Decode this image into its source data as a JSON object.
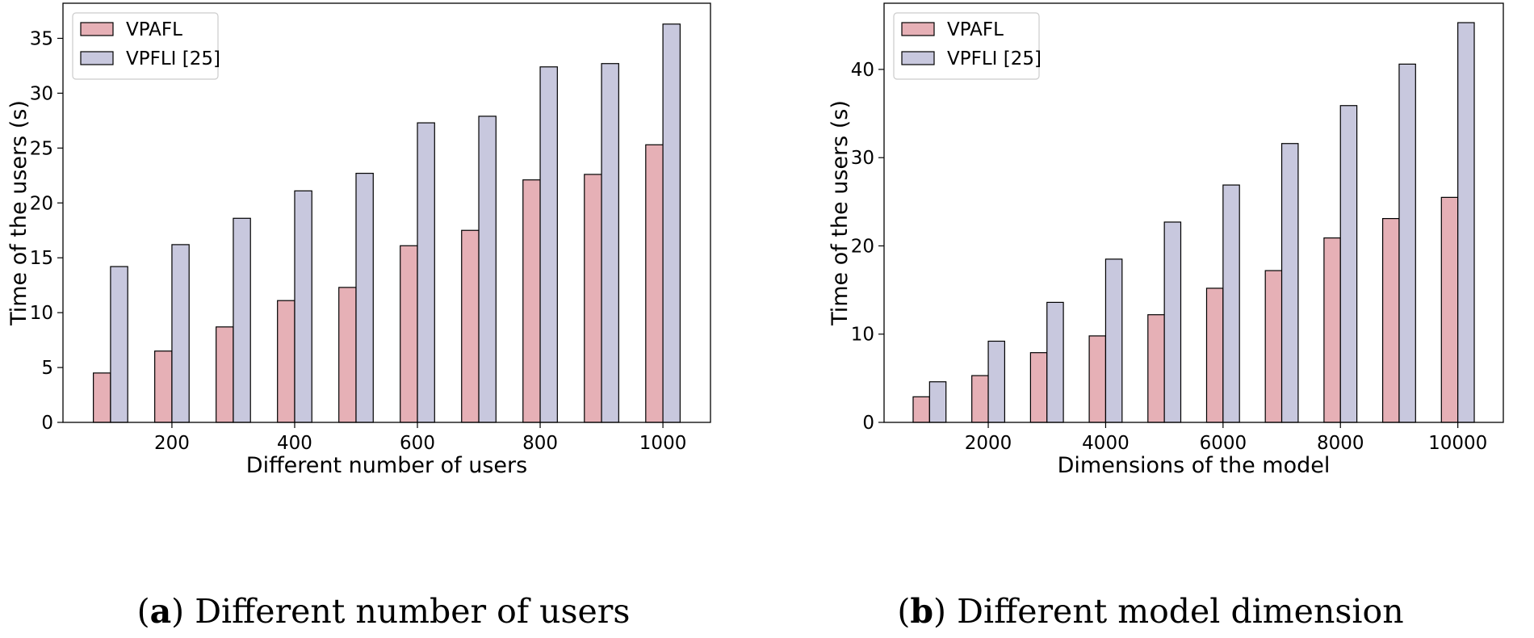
{
  "chart_data": [
    {
      "type": "bar",
      "x": [
        100,
        200,
        300,
        400,
        500,
        600,
        700,
        800,
        900,
        1000
      ],
      "xticks": [
        "200",
        "400",
        "600",
        "800",
        "1000"
      ],
      "yticks": [
        "0",
        "5",
        "10",
        "15",
        "20",
        "25",
        "30",
        "35"
      ],
      "xlabel": "Different number of users",
      "ylabel": "Time of the users (s)",
      "ylim": [
        0,
        38.2
      ],
      "grid": false,
      "legend_position": "top-left",
      "series": [
        {
          "name": "VPAFL",
          "color": "#e6b0b6",
          "values": [
            4.5,
            6.5,
            8.7,
            11.1,
            12.3,
            16.1,
            17.5,
            22.1,
            22.6,
            25.3
          ]
        },
        {
          "name": "VPFLI [25]",
          "color": "#c8c8de",
          "values": [
            14.2,
            16.2,
            18.6,
            21.1,
            22.7,
            27.3,
            27.9,
            32.4,
            32.7,
            36.3
          ]
        }
      ],
      "caption_letter": "a",
      "caption_text": "Different number of users"
    },
    {
      "type": "bar",
      "x": [
        1000,
        2000,
        3000,
        4000,
        5000,
        6000,
        7000,
        8000,
        9000,
        10000
      ],
      "xticks": [
        "2000",
        "4000",
        "6000",
        "8000",
        "10000"
      ],
      "yticks": [
        "0",
        "10",
        "20",
        "30",
        "40"
      ],
      "xlabel": "Dimensions of the model",
      "ylabel": "Time of the users (s)",
      "ylim": [
        0,
        47.5
      ],
      "grid": false,
      "legend_position": "top-left",
      "series": [
        {
          "name": "VPAFL",
          "color": "#e6b0b6",
          "values": [
            2.9,
            5.3,
            7.9,
            9.8,
            12.2,
            15.2,
            17.2,
            20.9,
            23.1,
            25.5
          ]
        },
        {
          "name": "VPFLI [25]",
          "color": "#c8c8de",
          "values": [
            4.6,
            9.2,
            13.6,
            18.5,
            22.7,
            26.9,
            31.6,
            35.9,
            40.6,
            45.3
          ]
        }
      ],
      "caption_letter": "b",
      "caption_text": "Different model dimension"
    }
  ]
}
